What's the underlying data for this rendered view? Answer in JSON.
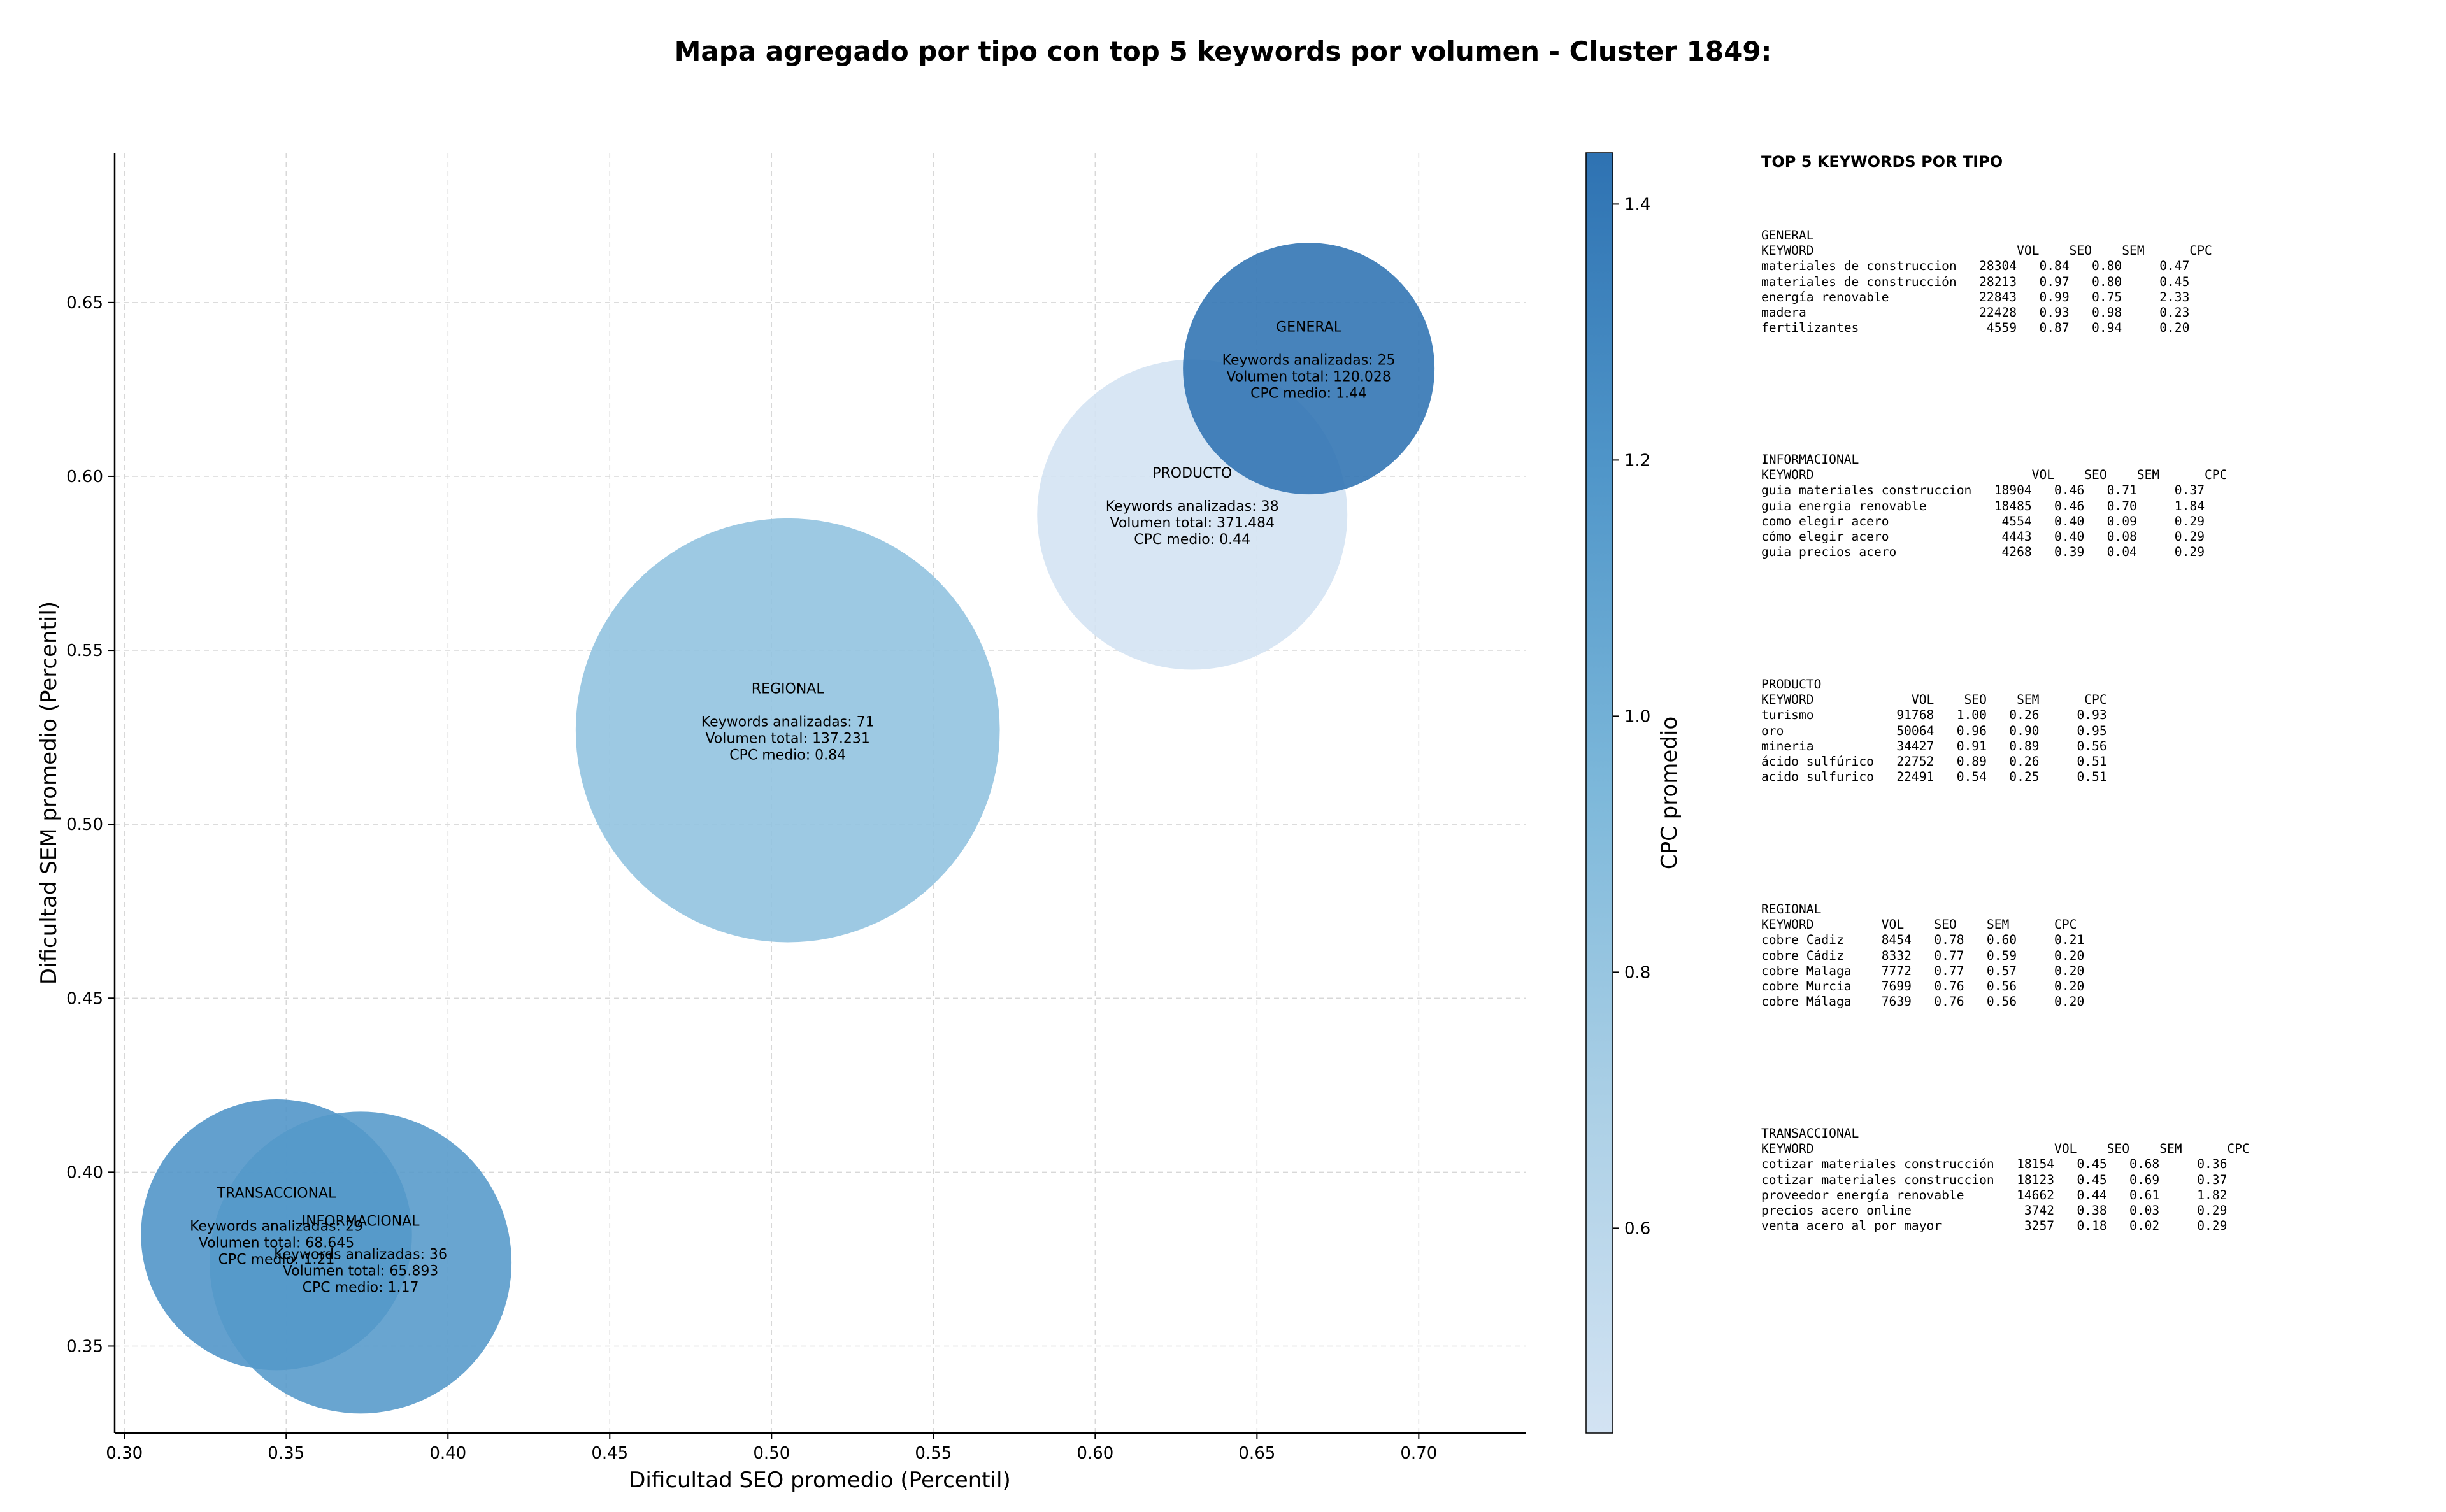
{
  "chart_data": {
    "type": "scatter",
    "title": "Mapa agregado por tipo con top 5 keywords por volumen - Cluster 1849:",
    "xlabel": "Dificultad SEO promedio (Percentil)",
    "ylabel": "Dificultad SEM promedio (Percentil)",
    "xlim": [
      0.297,
      0.733
    ],
    "ylim": [
      0.325,
      0.693
    ],
    "xticks": [
      0.3,
      0.35,
      0.4,
      0.45,
      0.5,
      0.55,
      0.6,
      0.65,
      0.7
    ],
    "xtick_labels": [
      "0.30",
      "0.35",
      "0.40",
      "0.45",
      "0.50",
      "0.55",
      "0.60",
      "0.65",
      "0.70"
    ],
    "yticks": [
      0.35,
      0.4,
      0.45,
      0.5,
      0.55,
      0.6,
      0.65
    ],
    "ytick_labels": [
      "0.35",
      "0.40",
      "0.45",
      "0.50",
      "0.55",
      "0.60",
      "0.65"
    ],
    "grid": true,
    "colorbar": {
      "label": "CPC promedio",
      "min": 0.44,
      "max": 1.44,
      "ticks": [
        0.6,
        0.8,
        1.0,
        1.2,
        1.4
      ],
      "tick_labels": [
        "0.6",
        "0.8",
        "1.0",
        "1.2",
        "1.4"
      ]
    },
    "points": [
      {
        "name": "TRANSACCIONAL",
        "x": 0.347,
        "y": 0.382,
        "cpc": 1.21,
        "keywords": 29,
        "volume": 68645,
        "line1": "Keywords analizadas: 29",
        "line2": "Volumen total: 68.645",
        "line3": "CPC medio: 1.21"
      },
      {
        "name": "INFORMACIONAL",
        "x": 0.373,
        "y": 0.374,
        "cpc": 1.17,
        "keywords": 36,
        "volume": 65893,
        "line1": "Keywords analizadas: 36",
        "line2": "Volumen total: 65.893",
        "line3": "CPC medio: 1.17"
      },
      {
        "name": "REGIONAL",
        "x": 0.505,
        "y": 0.527,
        "cpc": 0.84,
        "keywords": 71,
        "volume": 137231,
        "line1": "Keywords analizadas: 71",
        "line2": "Volumen total: 137.231",
        "line3": "CPC medio: 0.84"
      },
      {
        "name": "PRODUCTO",
        "x": 0.63,
        "y": 0.589,
        "cpc": 0.44,
        "keywords": 38,
        "volume": 371484,
        "line1": "Keywords analizadas: 38",
        "line2": "Volumen total: 371.484",
        "line3": "CPC medio: 0.44"
      },
      {
        "name": "GENERAL",
        "x": 0.666,
        "y": 0.631,
        "cpc": 1.44,
        "keywords": 25,
        "volume": 120028,
        "line1": "Keywords analizadas: 25",
        "line2": "Volumen total: 120.028",
        "line3": "CPC medio: 1.44"
      }
    ]
  },
  "side_panel": {
    "title": "TOP 5 KEYWORDS POR TIPO",
    "blocks": [
      {
        "text": "GENERAL\nKEYWORD                           VOL    SEO    SEM      CPC\nmateriales de construccion   28304   0.84   0.80     0.47\nmateriales de construcción   28213   0.97   0.80     0.45\nenergía renovable            22843   0.99   0.75     2.33\nmadera                       22428   0.93   0.98     0.23\nfertilizantes                 4559   0.87   0.94     0.20"
      },
      {
        "text": "INFORMACIONAL\nKEYWORD                             VOL    SEO    SEM      CPC\nguia materiales construccion   18904   0.46   0.71     0.37\nguia energia renovable         18485   0.46   0.70     1.84\ncomo elegir acero               4554   0.40   0.09     0.29\ncómo elegir acero               4443   0.40   0.08     0.29\nguia precios acero              4268   0.39   0.04     0.29"
      },
      {
        "text": "PRODUCTO\nKEYWORD             VOL    SEO    SEM      CPC\nturismo           91768   1.00   0.26     0.93\noro               50064   0.96   0.90     0.95\nmineria           34427   0.91   0.89     0.56\nácido sulfúrico   22752   0.89   0.26     0.51\nacido sulfurico   22491   0.54   0.25     0.51"
      },
      {
        "text": "REGIONAL\nKEYWORD         VOL    SEO    SEM      CPC\ncobre Cadiz     8454   0.78   0.60     0.21\ncobre Cádiz     8332   0.77   0.59     0.20\ncobre Malaga    7772   0.77   0.57     0.20\ncobre Murcia    7699   0.76   0.56     0.20\ncobre Málaga    7639   0.76   0.56     0.20"
      },
      {
        "text": "TRANSACCIONAL\nKEYWORD                                VOL    SEO    SEM      CPC\ncotizar materiales construcción   18154   0.45   0.68     0.36\ncotizar materiales construccion   18123   0.45   0.69     0.37\nproveedor energía renovable       14662   0.44   0.61     1.82\nprecios acero online               3742   0.38   0.03     0.29\nventa acero al por mayor           3257   0.18   0.02     0.29"
      }
    ]
  }
}
